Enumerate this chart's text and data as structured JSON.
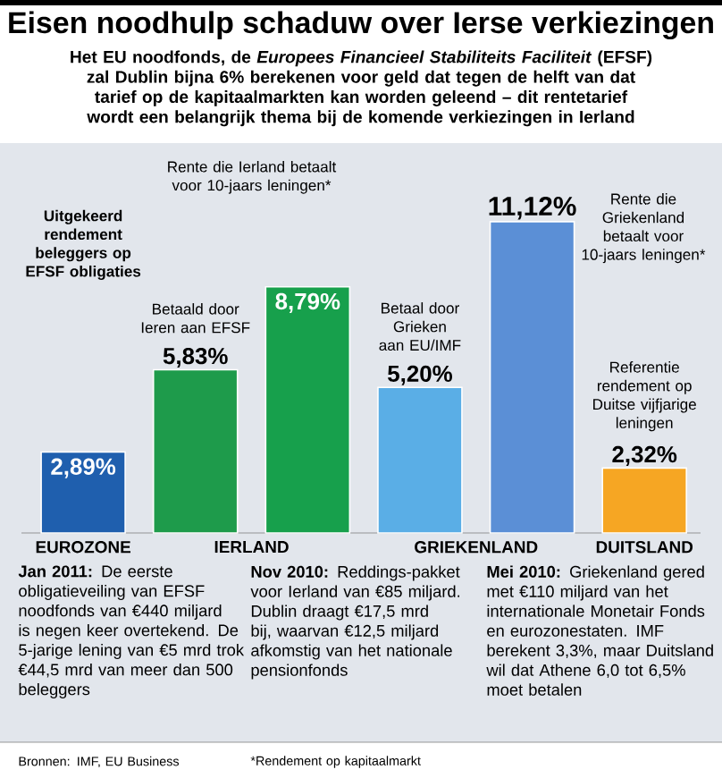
{
  "chart_data": {
    "type": "bar",
    "title": "Eisen noodhulp schaduw over Ierse verkiezingen",
    "subtitle": "Het EU noodfonds, de *Europees Financieel Stabiliteits Faciliteit* (EFSF) zal Dublin bijna 6% berekenen voor geld dat tegen de helft van dat tarief op de kapitaalmarkten kan worden geleend – dit rentetarief wordt een belangrijk thema bij de komende verkiezingen in Ierland",
    "categories": [
      "EUROZONE",
      "IERLAND",
      null,
      "GRIEKENLAND",
      null,
      "DUITSLAND"
    ],
    "values": [
      2.89,
      5.83,
      8.79,
      5.2,
      11.12,
      2.32
    ],
    "colors": [
      "#1f5fae",
      "#1e9b4b",
      "#17a04c",
      "#5aaee6",
      "#5b8fd6",
      "#f6a623"
    ],
    "value_labels": [
      "2,89%",
      "5,83%",
      "8,79%",
      "5,20%",
      "11,12%",
      "2,32%"
    ],
    "tick_labels": "x",
    "annotations": [
      "Uitgekeerd rendement beleggers op EFSF obligaties",
      "Betaald door Ieren aan EFSF",
      "Rente die Ierland betaalt voor 10-jaars leningen*",
      "Betaal door Grieken aan EU/IMF",
      "Rente die Griekenland betaalt voor 10-jaars leningen*",
      "Referentie rendement op Duitse vijfjarige leningen",
      "**Jan 2011:** De eerste obligatieveiling van EFSF noodfonds van €440 miljard is negen keer overtekend. De 5-jarige lening van €5 mrd trok €44,5 mrd van meer dan 500 beleggers",
      "**Nov 2010:** Reddings-pakket voor Ierland van €85 miljard. Dublin draagt €17,5 mrd bij, waarvan €12,5 miljard afkomstig van het nationale pensionfonds",
      "**Mei 2010:** Griekenland gered met €110 miljard van het internationale Monetair Fonds en eurozonestaten. IMF berekent 3,3%, maar Duitsland wil dat Athene 6,0 tot 6,5% moet betalen",
      "Bronnen: IMF, EU Business",
      "*Rendement op kapitaalmarkt"
    ]
  }
}
